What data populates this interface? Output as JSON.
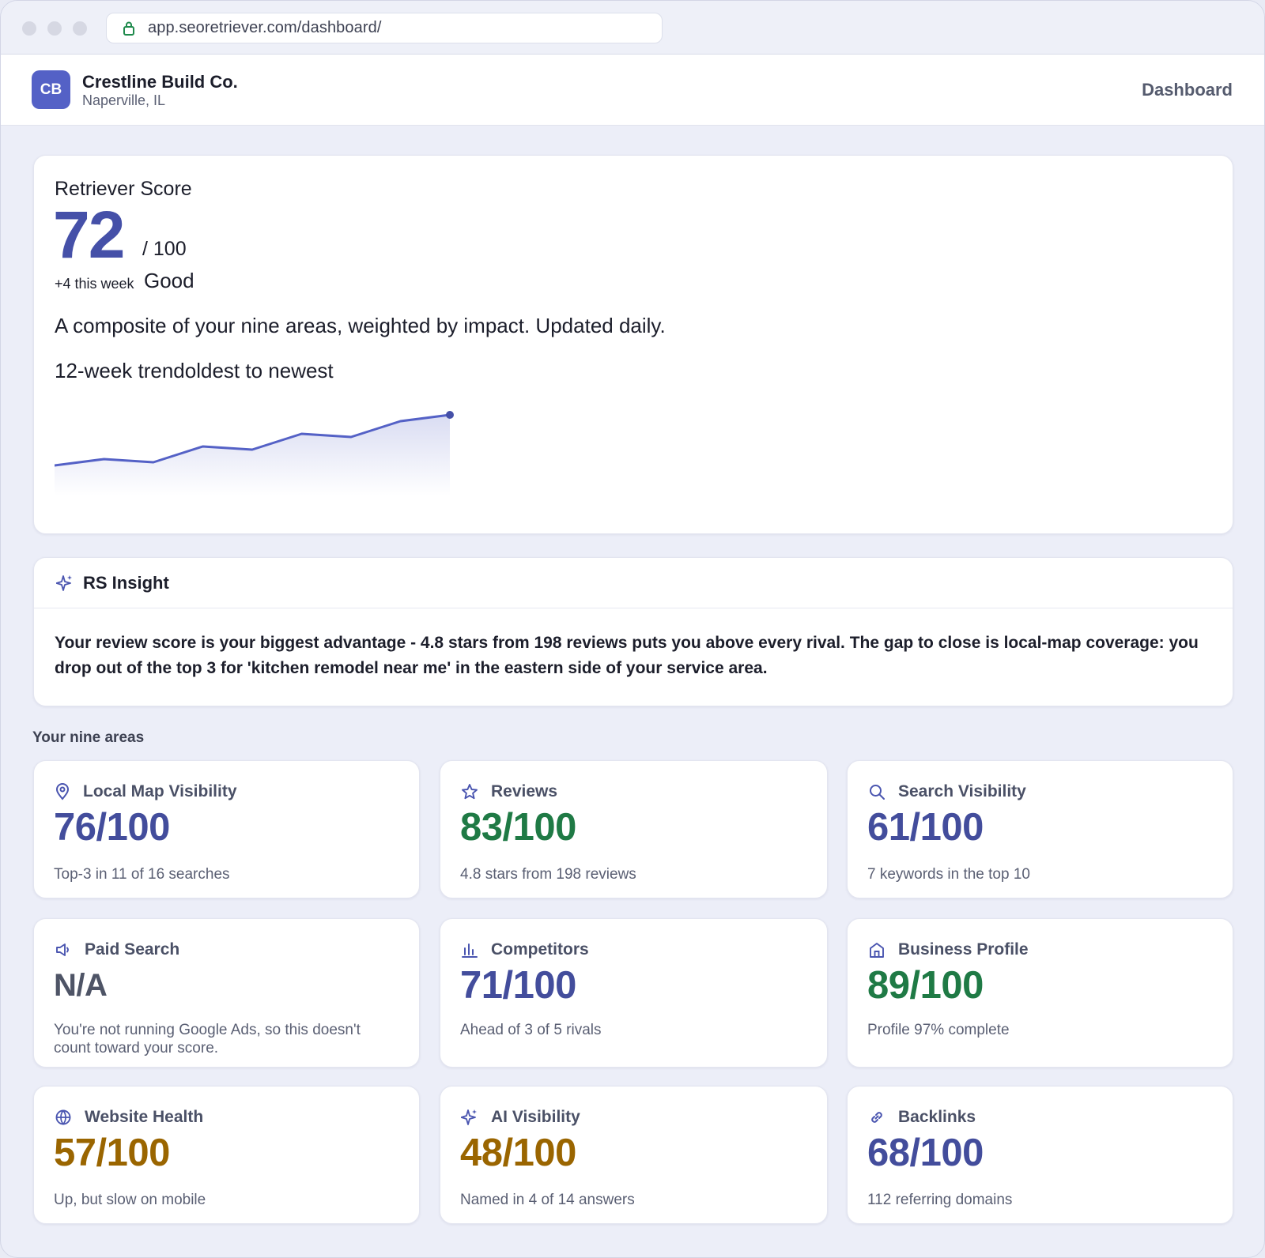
{
  "browser": {
    "url": "app.seoretriever.com/dashboard/"
  },
  "header": {
    "avatar_initials": "CB",
    "business_name": "Crestline Build Co.",
    "location": "Naperville, IL",
    "nav_link": "Dashboard"
  },
  "score": {
    "title": "Retriever Score",
    "value": "72",
    "max": "/ 100",
    "delta": "+4 this week",
    "rating": "Good",
    "description": "A composite of your nine areas, weighted by impact. Updated daily.",
    "trend_label": "12-week trendoldest to newest",
    "trend_values": [
      64,
      65,
      64.5,
      67,
      66.5,
      69,
      68.5,
      71,
      72
    ],
    "accent": "#5461c6"
  },
  "insight": {
    "title": "RS Insight",
    "text": "Your review score is your biggest advantage - 4.8 stars from 198 reviews puts you above every rival. The gap to close is local-map coverage: you drop out of the top 3 for 'kitchen remodel near me' in the eastern side of your service area."
  },
  "areas_label": "Your nine areas",
  "areas": [
    {
      "name": "Local Map Visibility",
      "icon": "map-pin-icon",
      "value": "76/100",
      "detail": "Top-3 in 11 of 16 searches",
      "color": "#434d9c"
    },
    {
      "name": "Reviews",
      "icon": "star-icon",
      "value": "83/100",
      "detail": "4.8 stars from 198 reviews",
      "color": "#1f7a45"
    },
    {
      "name": "Search Visibility",
      "icon": "search-icon",
      "value": "61/100",
      "detail": "7 keywords in the top 10",
      "color": "#434d9c"
    },
    {
      "name": "Paid Search",
      "icon": "megaphone-icon",
      "value": "N/A",
      "detail": "You're not running Google Ads, so this doesn't count toward your score.",
      "color": "#4e5466"
    },
    {
      "name": "Competitors",
      "icon": "bar-chart-icon",
      "value": "71/100",
      "detail": "Ahead of 3 of 5 rivals",
      "color": "#434d9c"
    },
    {
      "name": "Business Profile",
      "icon": "storefront-icon",
      "value": "89/100",
      "detail": "Profile 97% complete",
      "color": "#1f7a45"
    },
    {
      "name": "Website Health",
      "icon": "globe-icon",
      "value": "57/100",
      "detail": "Up, but slow on mobile",
      "color": "#9a6500"
    },
    {
      "name": "AI Visibility",
      "icon": "sparkle-icon",
      "value": "48/100",
      "detail": "Named in 4 of 14 answers",
      "color": "#9a6500"
    },
    {
      "name": "Backlinks",
      "icon": "link-icon",
      "value": "68/100",
      "detail": "112 referring domains",
      "color": "#434d9c"
    }
  ]
}
